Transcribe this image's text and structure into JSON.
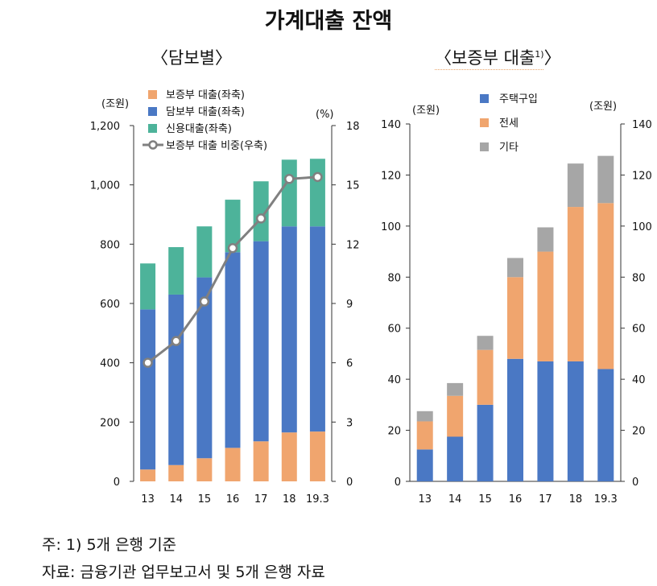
{
  "page": {
    "title": "가계대출 잔액",
    "subtitle_left": "〈담보별〉",
    "subtitle_right": "〈보증부 대출",
    "subtitle_right_sup": "1)",
    "subtitle_right_close": "〉",
    "note1": "주: 1) 5개 은행 기준",
    "note2": "자료: 금융기관 업무보고서 및 5개 은행 자료"
  },
  "chart_data": [
    {
      "type": "bar",
      "stacked": true,
      "categories": [
        "13",
        "14",
        "15",
        "16",
        "17",
        "18",
        "19.3"
      ],
      "series": [
        {
          "name": "보증부 대출(좌축)",
          "color": "#f0a56e",
          "values": [
            40,
            55,
            78,
            113,
            135,
            165,
            168
          ]
        },
        {
          "name": "담보부 대출(좌축)",
          "color": "#4a78c4",
          "values": [
            540,
            575,
            610,
            660,
            675,
            695,
            692
          ]
        },
        {
          "name": "신용대출(좌축)",
          "color": "#4db39a",
          "values": [
            155,
            160,
            172,
            177,
            202,
            225,
            228
          ]
        }
      ],
      "line_series": {
        "name": "보증부 대출 비중(우축)",
        "color": "#808080",
        "values": [
          6.0,
          7.1,
          9.1,
          11.8,
          13.3,
          15.3,
          15.4
        ]
      },
      "ylabel_unit_left": "(조원)",
      "ylabel_unit_right": "(%)",
      "ylim": [
        0,
        1200
      ],
      "y_ticks": [
        "0",
        "200",
        "400",
        "600",
        "800",
        "1,000",
        "1,200"
      ],
      "y2lim": [
        0,
        18
      ],
      "y2_ticks": [
        "0",
        "3",
        "6",
        "9",
        "12",
        "15",
        "18"
      ],
      "legend_position": "top-left"
    },
    {
      "type": "bar",
      "stacked": true,
      "categories": [
        "13",
        "14",
        "15",
        "16",
        "17",
        "18",
        "19.3"
      ],
      "series": [
        {
          "name": "주택구입",
          "color": "#4a78c4",
          "values": [
            12.5,
            17.5,
            30,
            48,
            47,
            47,
            44
          ]
        },
        {
          "name": "전세",
          "color": "#f0a56e",
          "values": [
            11,
            16,
            21.5,
            32,
            43,
            60.5,
            65
          ]
        },
        {
          "name": "기타",
          "color": "#a6a6a6",
          "values": [
            4,
            5,
            5.5,
            7.5,
            9.5,
            17,
            18.5
          ]
        }
      ],
      "ylabel_unit_left": "(조원)",
      "ylabel_unit_right": "(조원)",
      "ylim": [
        0,
        140
      ],
      "y_ticks": [
        "0",
        "20",
        "40",
        "60",
        "80",
        "100",
        "120",
        "140"
      ],
      "legend_position": "top-center"
    }
  ]
}
